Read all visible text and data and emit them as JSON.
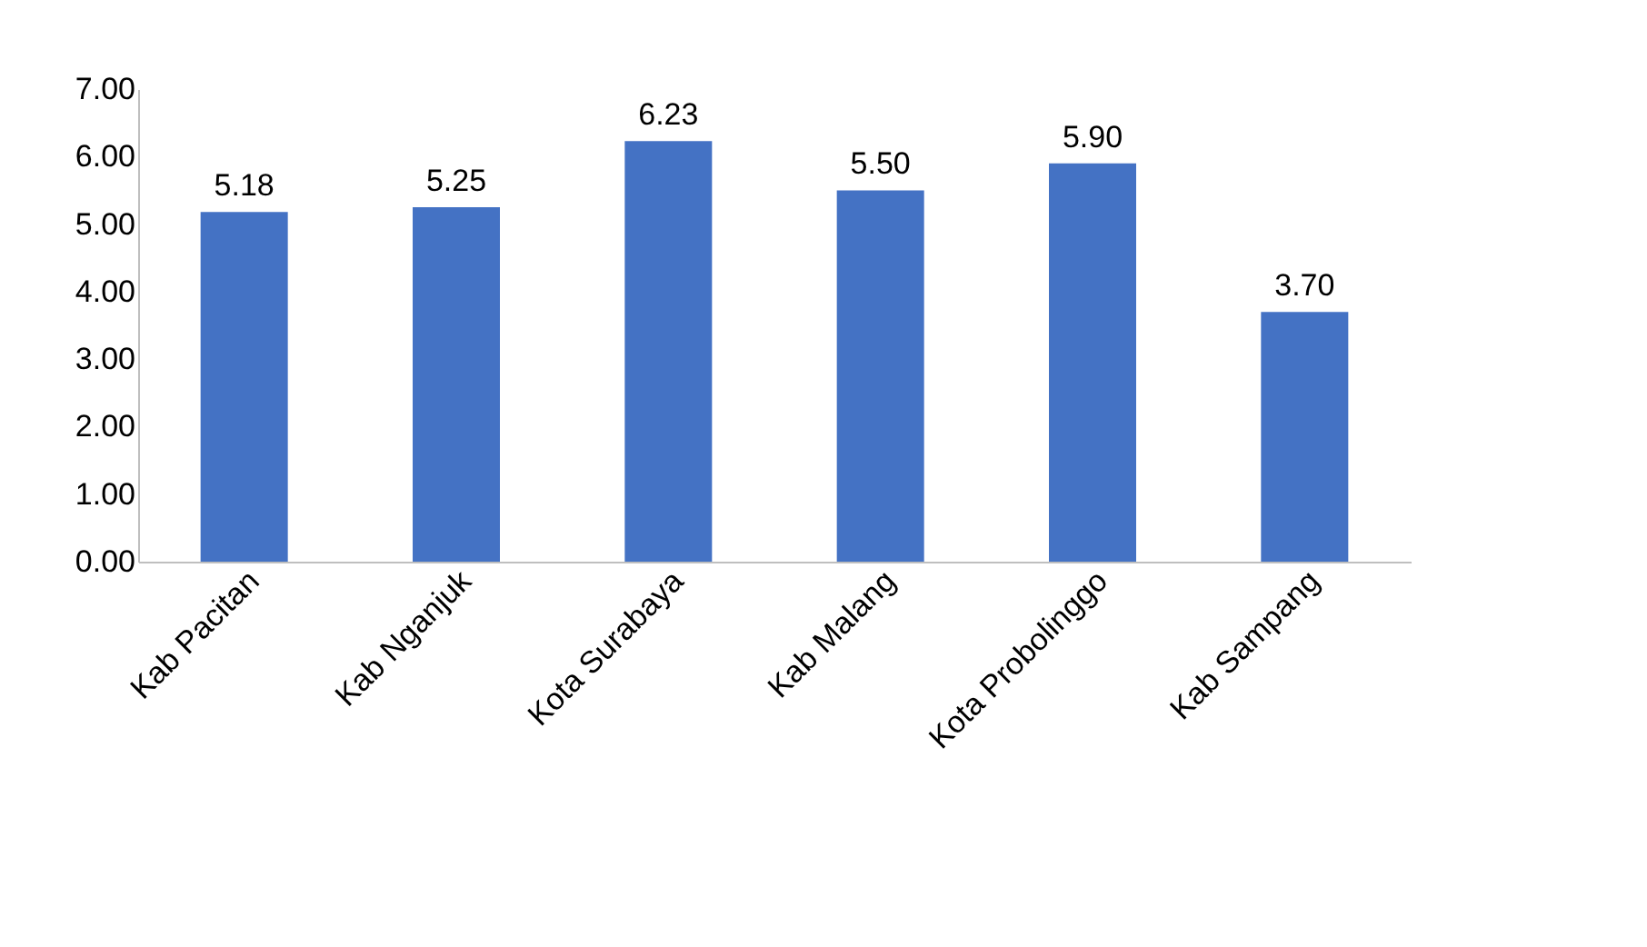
{
  "chart_data": {
    "type": "bar",
    "categories": [
      "Kab Pacitan",
      "Kab Nganjuk",
      "Kota Surabaya",
      "Kab Malang",
      "Kota Probolinggo",
      "Kab Sampang"
    ],
    "values": [
      5.18,
      5.25,
      6.23,
      5.5,
      5.9,
      3.7
    ],
    "value_labels": [
      "5.18",
      "5.25",
      "6.23",
      "5.50",
      "5.90",
      "3.70"
    ],
    "color": "#4472c4",
    "ylim": [
      0,
      7
    ],
    "yticks": [
      {
        "value": 0,
        "label": "0.00"
      },
      {
        "value": 1,
        "label": "1.00"
      },
      {
        "value": 2,
        "label": "2.00"
      },
      {
        "value": 3,
        "label": "3.00"
      },
      {
        "value": 4,
        "label": "4.00"
      },
      {
        "value": 5,
        "label": "5.00"
      },
      {
        "value": 6,
        "label": "6.00"
      },
      {
        "value": 7,
        "label": "7.00"
      }
    ],
    "grid": false
  }
}
